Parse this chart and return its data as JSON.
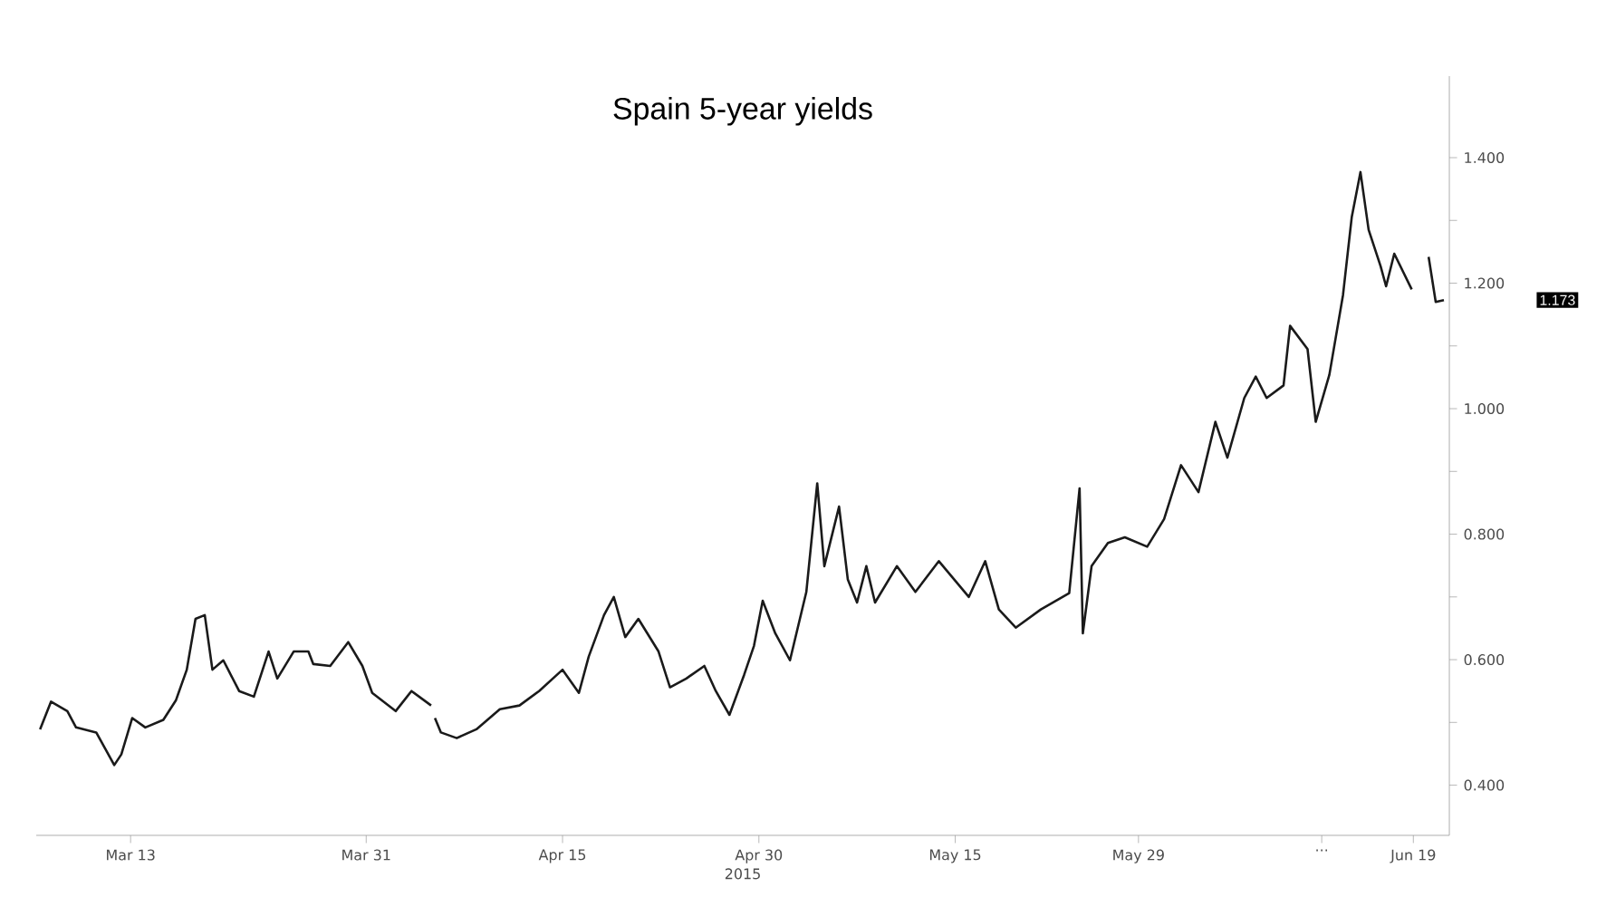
{
  "chart_data": {
    "type": "line",
    "title": "Spain 5-year yields",
    "xlabel": "2015",
    "x": [
      "2015-03-06T02:00",
      "2015-03-06T22:00",
      "2015-03-08T04:00",
      "2015-03-08T20:00",
      "2015-03-10T09:00",
      "2015-03-11T18:00",
      "2015-03-12T07:00",
      "2015-03-13T03:00",
      "2015-03-14T03:00",
      "2015-03-15T12:00",
      "2015-03-16T11:00",
      "2015-03-17T07:00",
      "2015-03-17T23:00",
      "2015-03-18T16:00",
      "2015-03-19T06:00",
      "2015-03-20T02:00",
      "2015-03-21T07:00",
      "2015-03-22T10:00",
      "2015-03-23T13:00",
      "2015-03-24T05:00",
      "2015-03-25T11:00",
      "2015-03-26T14:00",
      "2015-03-26T23:00",
      "2015-03-28T06:00",
      "2015-03-29T15:00",
      "2015-03-30T17:00",
      "2015-03-31T11:00",
      "2015-04-02T06:00",
      "2015-04-03T11:00",
      "2015-04-04T23:00",
      "2015-04-05T03:00",
      "2015-04-05T06:00",
      "2015-04-05T17:00",
      "2015-04-06T22:00",
      "2015-04-08T10:00",
      "2015-04-10T05:00",
      "2015-04-11T17:00",
      "2015-04-13T05:00",
      "2015-04-15T00:00",
      "2015-04-16T06:00",
      "2015-04-17T00:00",
      "2015-04-18T04:00",
      "2015-04-18T22:00",
      "2015-04-19T19:00",
      "2015-04-20T19:00",
      "2015-04-22T08:00",
      "2015-04-23T05:00",
      "2015-04-24T11:00",
      "2015-04-25T20:00",
      "2015-04-26T17:00",
      "2015-04-27T18:00",
      "2015-04-28T21:00",
      "2015-04-29T15:00",
      "2015-04-30T07:00",
      "2015-05-01T06:00",
      "2015-05-02T09:00",
      "2015-05-03T15:00",
      "2015-05-04T11:00",
      "2015-05-05T00:00",
      "2015-05-06T03:00",
      "2015-05-06T19:00",
      "2015-05-07T12:00",
      "2015-05-08T05:00",
      "2015-05-08T21:00",
      "2015-05-10T13:00",
      "2015-05-11T23:00",
      "2015-05-13T18:00",
      "2015-05-16T01:00",
      "2015-05-17T07:00",
      "2015-05-18T08:00",
      "2015-05-19T15:00",
      "2015-05-21T13:00",
      "2015-05-23T17:00",
      "2015-05-24T12:00",
      "2015-05-24T18:00",
      "2015-05-25T10:00",
      "2015-05-26T16:00",
      "2015-05-27T23:00",
      "2015-05-29T16:00",
      "2015-05-30T23:00",
      "2015-06-01T06:00",
      "2015-06-02T14:00",
      "2015-06-03T21:00",
      "2015-06-04T19:00",
      "2015-06-06T02:00",
      "2015-06-06T23:00",
      "2015-06-07T19:00",
      "2015-06-09T02:00",
      "2015-06-09T14:00",
      "2015-06-10T22:00",
      "2015-06-11T13:00",
      "2015-06-12T14:00",
      "2015-06-13T15:00",
      "2015-06-14T07:00",
      "2015-06-14T23:00",
      "2015-06-15T14:00",
      "2015-06-16T12:00",
      "2015-06-16T22:00",
      "2015-06-17T13:00",
      "2015-06-18T21:00",
      "2015-06-19T06:00",
      "2015-06-20T04:00",
      "2015-06-20T17:00",
      "2015-06-21T08:00"
    ],
    "series": [
      {
        "color": "#1a1a1a",
        "values": [
          0.489,
          0.533,
          0.518,
          0.492,
          0.484,
          0.432,
          0.449,
          0.507,
          0.492,
          0.504,
          0.535,
          0.584,
          0.665,
          0.671,
          0.584,
          0.599,
          0.55,
          0.541,
          0.613,
          0.57,
          0.613,
          0.613,
          0.593,
          0.59,
          0.628,
          0.59,
          0.547,
          0.518,
          0.55,
          0.527,
          null,
          0.507,
          0.484,
          0.475,
          0.489,
          0.521,
          0.527,
          0.55,
          0.584,
          0.547,
          0.605,
          0.671,
          0.7,
          0.636,
          0.665,
          0.613,
          0.556,
          0.57,
          0.59,
          0.55,
          0.512,
          0.576,
          0.622,
          0.694,
          0.642,
          0.599,
          0.708,
          0.881,
          0.749,
          0.844,
          0.728,
          0.691,
          0.749,
          0.691,
          0.749,
          0.708,
          0.757,
          0.7,
          0.757,
          0.68,
          0.651,
          0.68,
          0.706,
          0.873,
          0.642,
          0.749,
          0.786,
          0.795,
          0.78,
          0.824,
          0.91,
          0.867,
          0.979,
          0.922,
          1.017,
          1.051,
          1.017,
          1.037,
          1.132,
          1.095,
          0.979,
          1.054,
          1.181,
          1.305,
          1.377,
          1.285,
          1.227,
          1.195,
          1.247,
          1.19,
          null,
          1.242,
          1.17,
          1.173
        ]
      }
    ],
    "xlim": [
      "2015-03-05T19:00",
      "2015-06-21T18:00"
    ],
    "xticks": [
      {
        "value": "2015-03-13",
        "label": "Mar 13"
      },
      {
        "value": "2015-03-31",
        "label": "Mar 31"
      },
      {
        "value": "2015-04-15",
        "label": "Apr 15"
      },
      {
        "value": "2015-04-30",
        "label": "Apr 30"
      },
      {
        "value": "2015-05-15",
        "label": "May 15"
      },
      {
        "value": "2015-05-29",
        "label": "May 29"
      },
      {
        "value": "2015-06-12",
        "label": "..."
      },
      {
        "value": "2015-06-19",
        "label": "Jun 19"
      }
    ],
    "ylim": [
      0.32,
      1.53
    ],
    "yticks": [
      {
        "value": 0.4,
        "label": "0.400"
      },
      {
        "value": 0.5,
        "label": null
      },
      {
        "value": 0.6,
        "label": "0.600"
      },
      {
        "value": 0.7,
        "label": null
      },
      {
        "value": 0.8,
        "label": "0.800"
      },
      {
        "value": 0.9,
        "label": null
      },
      {
        "value": 1.0,
        "label": "1.000"
      },
      {
        "value": 1.1,
        "label": null
      },
      {
        "value": 1.2,
        "label": "1.200"
      },
      {
        "value": 1.3,
        "label": null
      },
      {
        "value": 1.4,
        "label": "1.400"
      }
    ],
    "annotations": [
      "1.173"
    ],
    "grid": false,
    "marker": "none",
    "line_style": "solid"
  }
}
